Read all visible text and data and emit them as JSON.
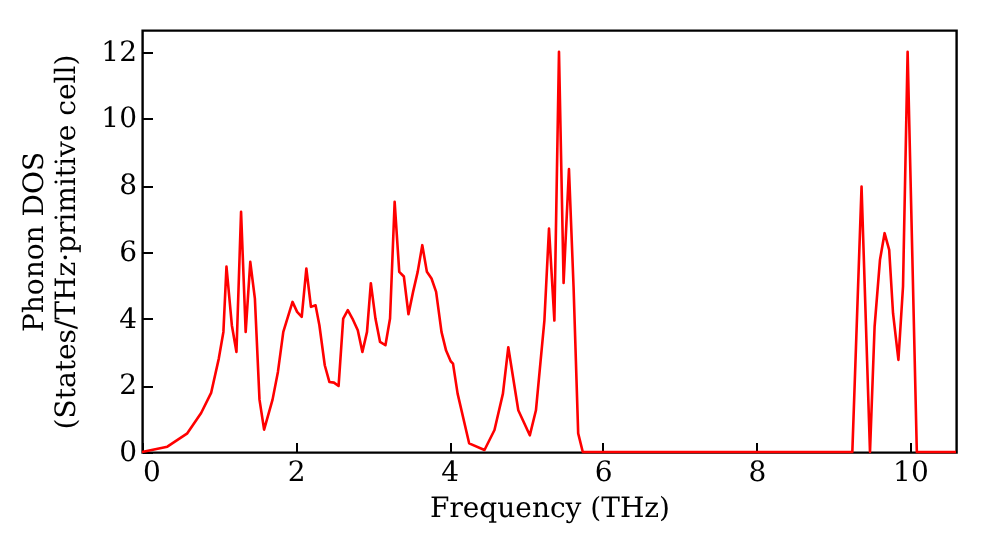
{
  "chart_data": {
    "type": "line",
    "xlabel": "Frequency (THz)",
    "ylabel": "Phonon DOS\n(States/THz·primitive cell)",
    "x": [
      0,
      0.33,
      0.59,
      0.77,
      0.9,
      1.0,
      1.06,
      1.1,
      1.17,
      1.23,
      1.29,
      1.35,
      1.41,
      1.47,
      1.53,
      1.59,
      1.7,
      1.77,
      1.84,
      1.96,
      2.02,
      2.08,
      2.14,
      2.2,
      2.26,
      2.31,
      2.38,
      2.44,
      2.5,
      2.56,
      2.62,
      2.68,
      2.74,
      2.81,
      2.87,
      2.93,
      2.98,
      3.04,
      3.1,
      3.17,
      3.23,
      3.29,
      3.35,
      3.41,
      3.47,
      3.53,
      3.59,
      3.65,
      3.71,
      3.77,
      3.83,
      3.9,
      3.96,
      4.02,
      4.05,
      4.11,
      4.26,
      4.46,
      4.59,
      4.7,
      4.77,
      4.9,
      5.05,
      5.13,
      5.24,
      5.3,
      5.37,
      5.43,
      5.49,
      5.56,
      5.62,
      5.68,
      5.74,
      9.25,
      9.37,
      9.48,
      9.54,
      9.61,
      9.67,
      9.73,
      9.78,
      9.85,
      9.91,
      9.97,
      10.09,
      10.6
    ],
    "series": [
      {
        "color": "#ff0000",
        "values": [
          0,
          0.16,
          0.56,
          1.17,
          1.77,
          2.8,
          3.6,
          5.56,
          3.8,
          3.0,
          7.2,
          3.6,
          5.7,
          4.6,
          1.57,
          0.67,
          1.57,
          2.4,
          3.6,
          4.5,
          4.2,
          4.05,
          5.5,
          4.35,
          4.4,
          3.8,
          2.6,
          2.1,
          2.08,
          1.98,
          4.0,
          4.25,
          4.0,
          3.65,
          3.0,
          3.6,
          5.06,
          4.0,
          3.3,
          3.2,
          4.0,
          7.5,
          5.4,
          5.26,
          4.13,
          4.8,
          5.4,
          6.2,
          5.4,
          5.2,
          4.8,
          3.6,
          3.04,
          2.72,
          2.65,
          1.75,
          0.26,
          0.06,
          0.66,
          1.75,
          3.14,
          1.25,
          0.5,
          1.25,
          3.94,
          6.7,
          3.94,
          12.0,
          5.07,
          8.48,
          4.94,
          0.56,
          0,
          0,
          7.96,
          0,
          3.76,
          5.76,
          6.56,
          6.06,
          4.16,
          2.76,
          4.96,
          12.0,
          0,
          0
        ]
      }
    ],
    "xlim": [
      0,
      10.6
    ],
    "ylim": [
      0,
      12.65
    ],
    "xticks": [
      0,
      2,
      4,
      6,
      8,
      10
    ],
    "yticks": [
      0,
      2,
      4,
      6,
      8,
      10,
      12
    ],
    "grid": false,
    "legend": false,
    "marker": "none",
    "line_style": "solid"
  }
}
